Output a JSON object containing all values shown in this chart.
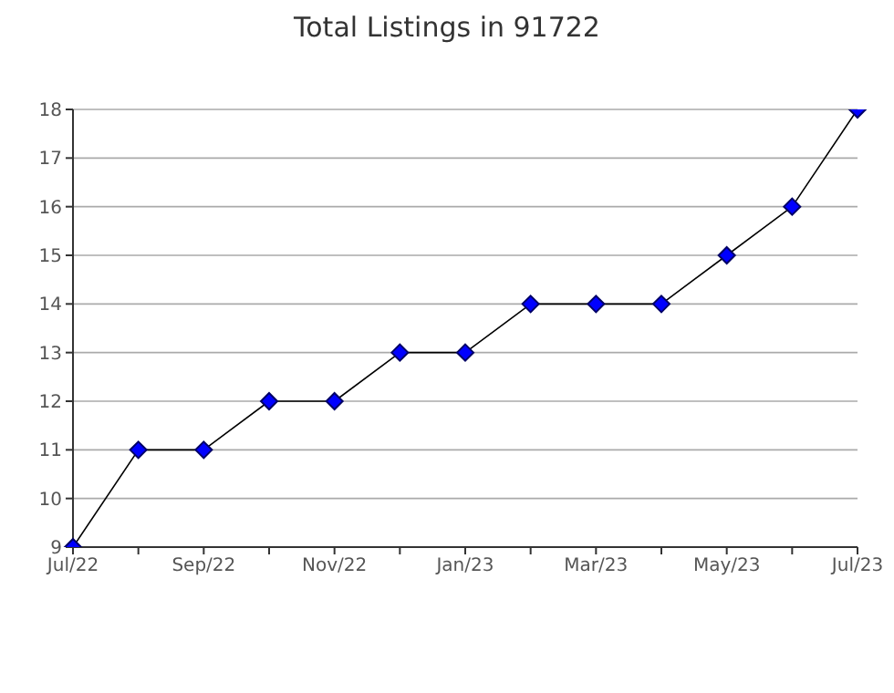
{
  "chart_data": {
    "type": "line",
    "title": "Total Listings in 91722",
    "categories": [
      "Jul/22",
      null,
      "Sep/22",
      null,
      "Nov/22",
      null,
      "Jan/23",
      null,
      "Mar/23",
      null,
      "May/23",
      null,
      "Jul/23"
    ],
    "series": [
      {
        "color": "#0000ff",
        "values": [
          9,
          11,
          11,
          12,
          12,
          13,
          13,
          14,
          14,
          14,
          15,
          16,
          18
        ]
      }
    ],
    "ylim": [
      9,
      18
    ],
    "yticks": [
      9,
      10,
      11,
      12,
      13,
      14,
      15,
      16,
      17,
      18
    ],
    "grid": "y",
    "marker": "diamond",
    "line_style": "solid"
  }
}
